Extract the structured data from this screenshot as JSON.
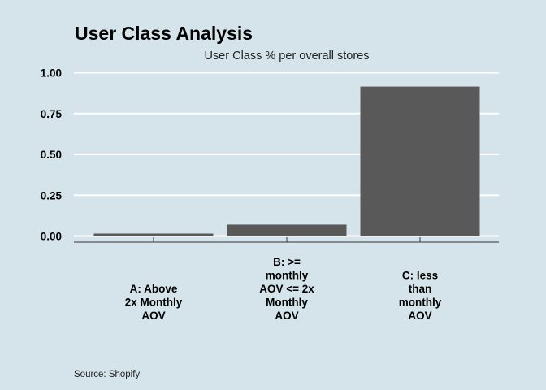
{
  "chart_data": {
    "type": "bar",
    "title": "User Class Analysis",
    "subtitle": "User Class % per overall stores",
    "caption": "Source: Shopify",
    "categories": [
      [
        "A: Above",
        "2x Monthly",
        "AOV"
      ],
      [
        "B: >=",
        "monthly",
        "AOV <= 2x",
        "Monthly",
        "AOV"
      ],
      [
        "C: less",
        "than",
        "monthly",
        "AOV"
      ]
    ],
    "values": [
      0.015,
      0.07,
      0.915
    ],
    "ylim": [
      0,
      1
    ],
    "yticks": [
      "0.00",
      "0.25",
      "0.50",
      "0.75",
      "1.00"
    ],
    "xlabel": "",
    "ylabel": "",
    "grid": "horizontal",
    "colors": {
      "background": "#d5e4eb",
      "bar": "#595959",
      "grid": "#ffffff",
      "axis": "#333333"
    }
  }
}
